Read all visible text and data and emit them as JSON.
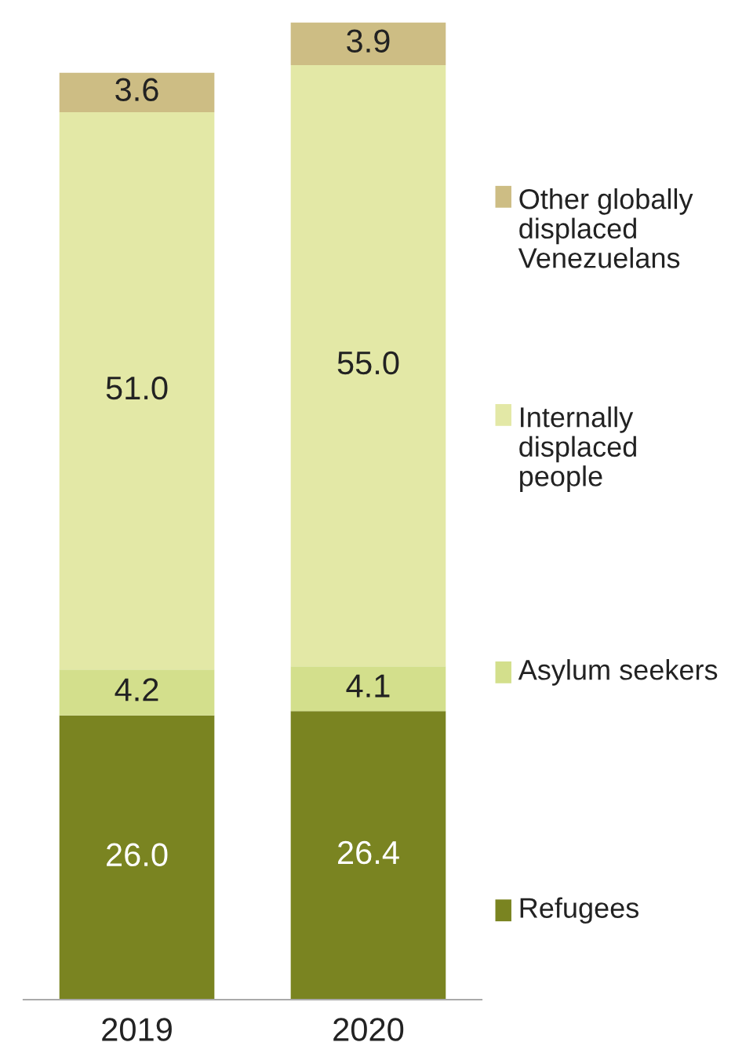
{
  "chart_data": {
    "type": "bar",
    "stacked": true,
    "legend": "right",
    "categories": [
      "2019",
      "2020"
    ],
    "series": [
      {
        "name": "Refugees",
        "color": "#7a8421",
        "values": [
          26.0,
          26.4
        ],
        "value_labels": [
          "26.0",
          "26.4"
        ]
      },
      {
        "name": "Asylum seekers",
        "color": "#d3df8c",
        "values": [
          4.2,
          4.1
        ],
        "value_labels": [
          "4.2",
          "4.1"
        ]
      },
      {
        "name": "Internally displaced people",
        "color": "#e3e8a6",
        "values": [
          51.0,
          55.0
        ],
        "value_labels": [
          "51.0",
          "55.0"
        ]
      },
      {
        "name": "Other globally displaced Venezuelans",
        "color": "#cdbd84",
        "values": [
          3.6,
          3.9
        ],
        "value_labels": [
          "3.6",
          "3.9"
        ]
      }
    ]
  }
}
